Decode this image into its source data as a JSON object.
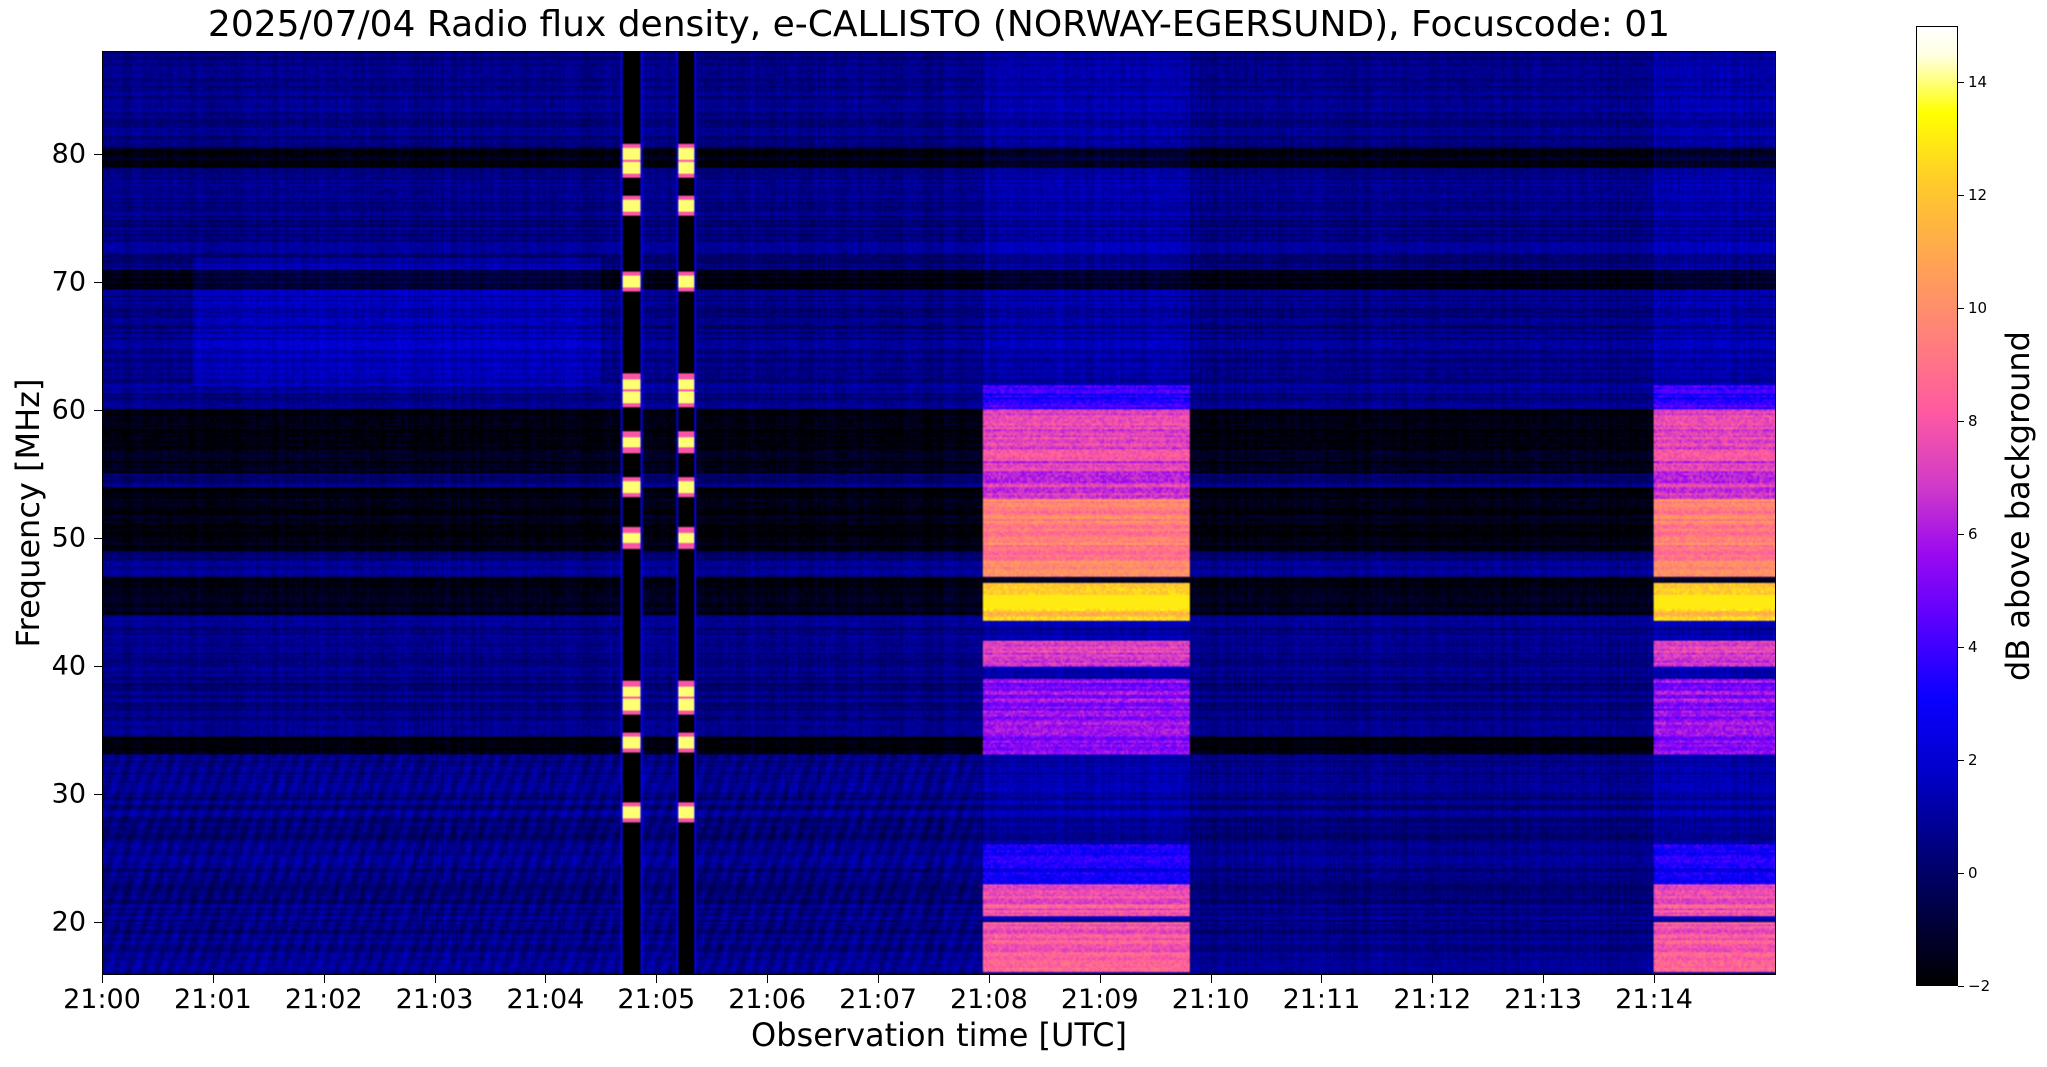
{
  "chart_data": {
    "type": "heatmap",
    "title": "2025/07/04  Radio flux density, e-CALLISTO (NORWAY-EGERSUND), Focuscode: 01",
    "xlabel": "Observation time [UTC]",
    "ylabel": "Frequency [MHz]",
    "colorbar_label": "dB above background",
    "x_unit": "minutes after 21:00",
    "xlim": [
      0,
      15.1
    ],
    "ylim": [
      15.9,
      88
    ],
    "x_ticks": [
      0,
      1,
      2,
      3,
      4,
      5,
      6,
      7,
      8,
      9,
      10,
      11,
      12,
      13,
      14
    ],
    "x_tick_labels": [
      "21:00",
      "21:01",
      "21:02",
      "21:03",
      "21:04",
      "21:05",
      "21:06",
      "21:07",
      "21:08",
      "21:09",
      "21:10",
      "21:11",
      "21:12",
      "21:13",
      "21:14"
    ],
    "y_ticks": [
      20,
      30,
      40,
      50,
      60,
      70,
      80
    ],
    "y_tick_labels": [
      "20",
      "30",
      "40",
      "50",
      "60",
      "70",
      "80"
    ],
    "colorbar_range": [
      -2,
      15
    ],
    "colorbar_ticks": [
      -2,
      0,
      2,
      4,
      6,
      8,
      10,
      12,
      14
    ],
    "colorbar_tick_labels": [
      "−2",
      "0",
      "2",
      "4",
      "6",
      "8",
      "10",
      "12",
      "14"
    ],
    "colormap": "gnuplot2",
    "background_level_db": 0.5,
    "burst_columns": [
      {
        "t_start": 4.68,
        "t_end": 4.88,
        "bright_freqs_mhz": [
          28.5,
          34,
          37,
          38,
          50,
          54,
          57.5,
          61,
          62,
          70,
          76,
          79,
          80
        ]
      },
      {
        "t_start": 5.17,
        "t_end": 5.36,
        "bright_freqs_mhz": [
          28.5,
          34,
          37,
          38,
          50,
          54,
          57.5,
          61,
          62,
          70,
          76,
          79,
          80
        ]
      }
    ],
    "broadband_blocks": [
      {
        "t_start": 7.95,
        "t_end": 9.82
      },
      {
        "t_start": 14.01,
        "t_end": 15.1
      }
    ],
    "block_bands_db": [
      {
        "f_low": 16,
        "f_high": 20,
        "db": 8
      },
      {
        "f_low": 20.5,
        "f_high": 23,
        "db": 8
      },
      {
        "f_low": 23,
        "f_high": 26,
        "db": 3
      },
      {
        "f_low": 33,
        "f_high": 39,
        "db": 5.5
      },
      {
        "f_low": 40,
        "f_high": 42,
        "db": 7
      },
      {
        "f_low": 43.5,
        "f_high": 46.5,
        "db": 12
      },
      {
        "f_low": 47,
        "f_high": 53,
        "db": 9.5
      },
      {
        "f_low": 53,
        "f_high": 56,
        "db": 7
      },
      {
        "f_low": 56,
        "f_high": 60,
        "db": 7.5
      },
      {
        "f_low": 60,
        "f_high": 62,
        "db": 3.5
      }
    ],
    "quiet_bands_mhz": [
      [
        33,
        34.5
      ],
      [
        44,
        47
      ],
      [
        49,
        54
      ],
      [
        55,
        60
      ],
      [
        69.5,
        71
      ],
      [
        79,
        80.5
      ]
    ]
  }
}
